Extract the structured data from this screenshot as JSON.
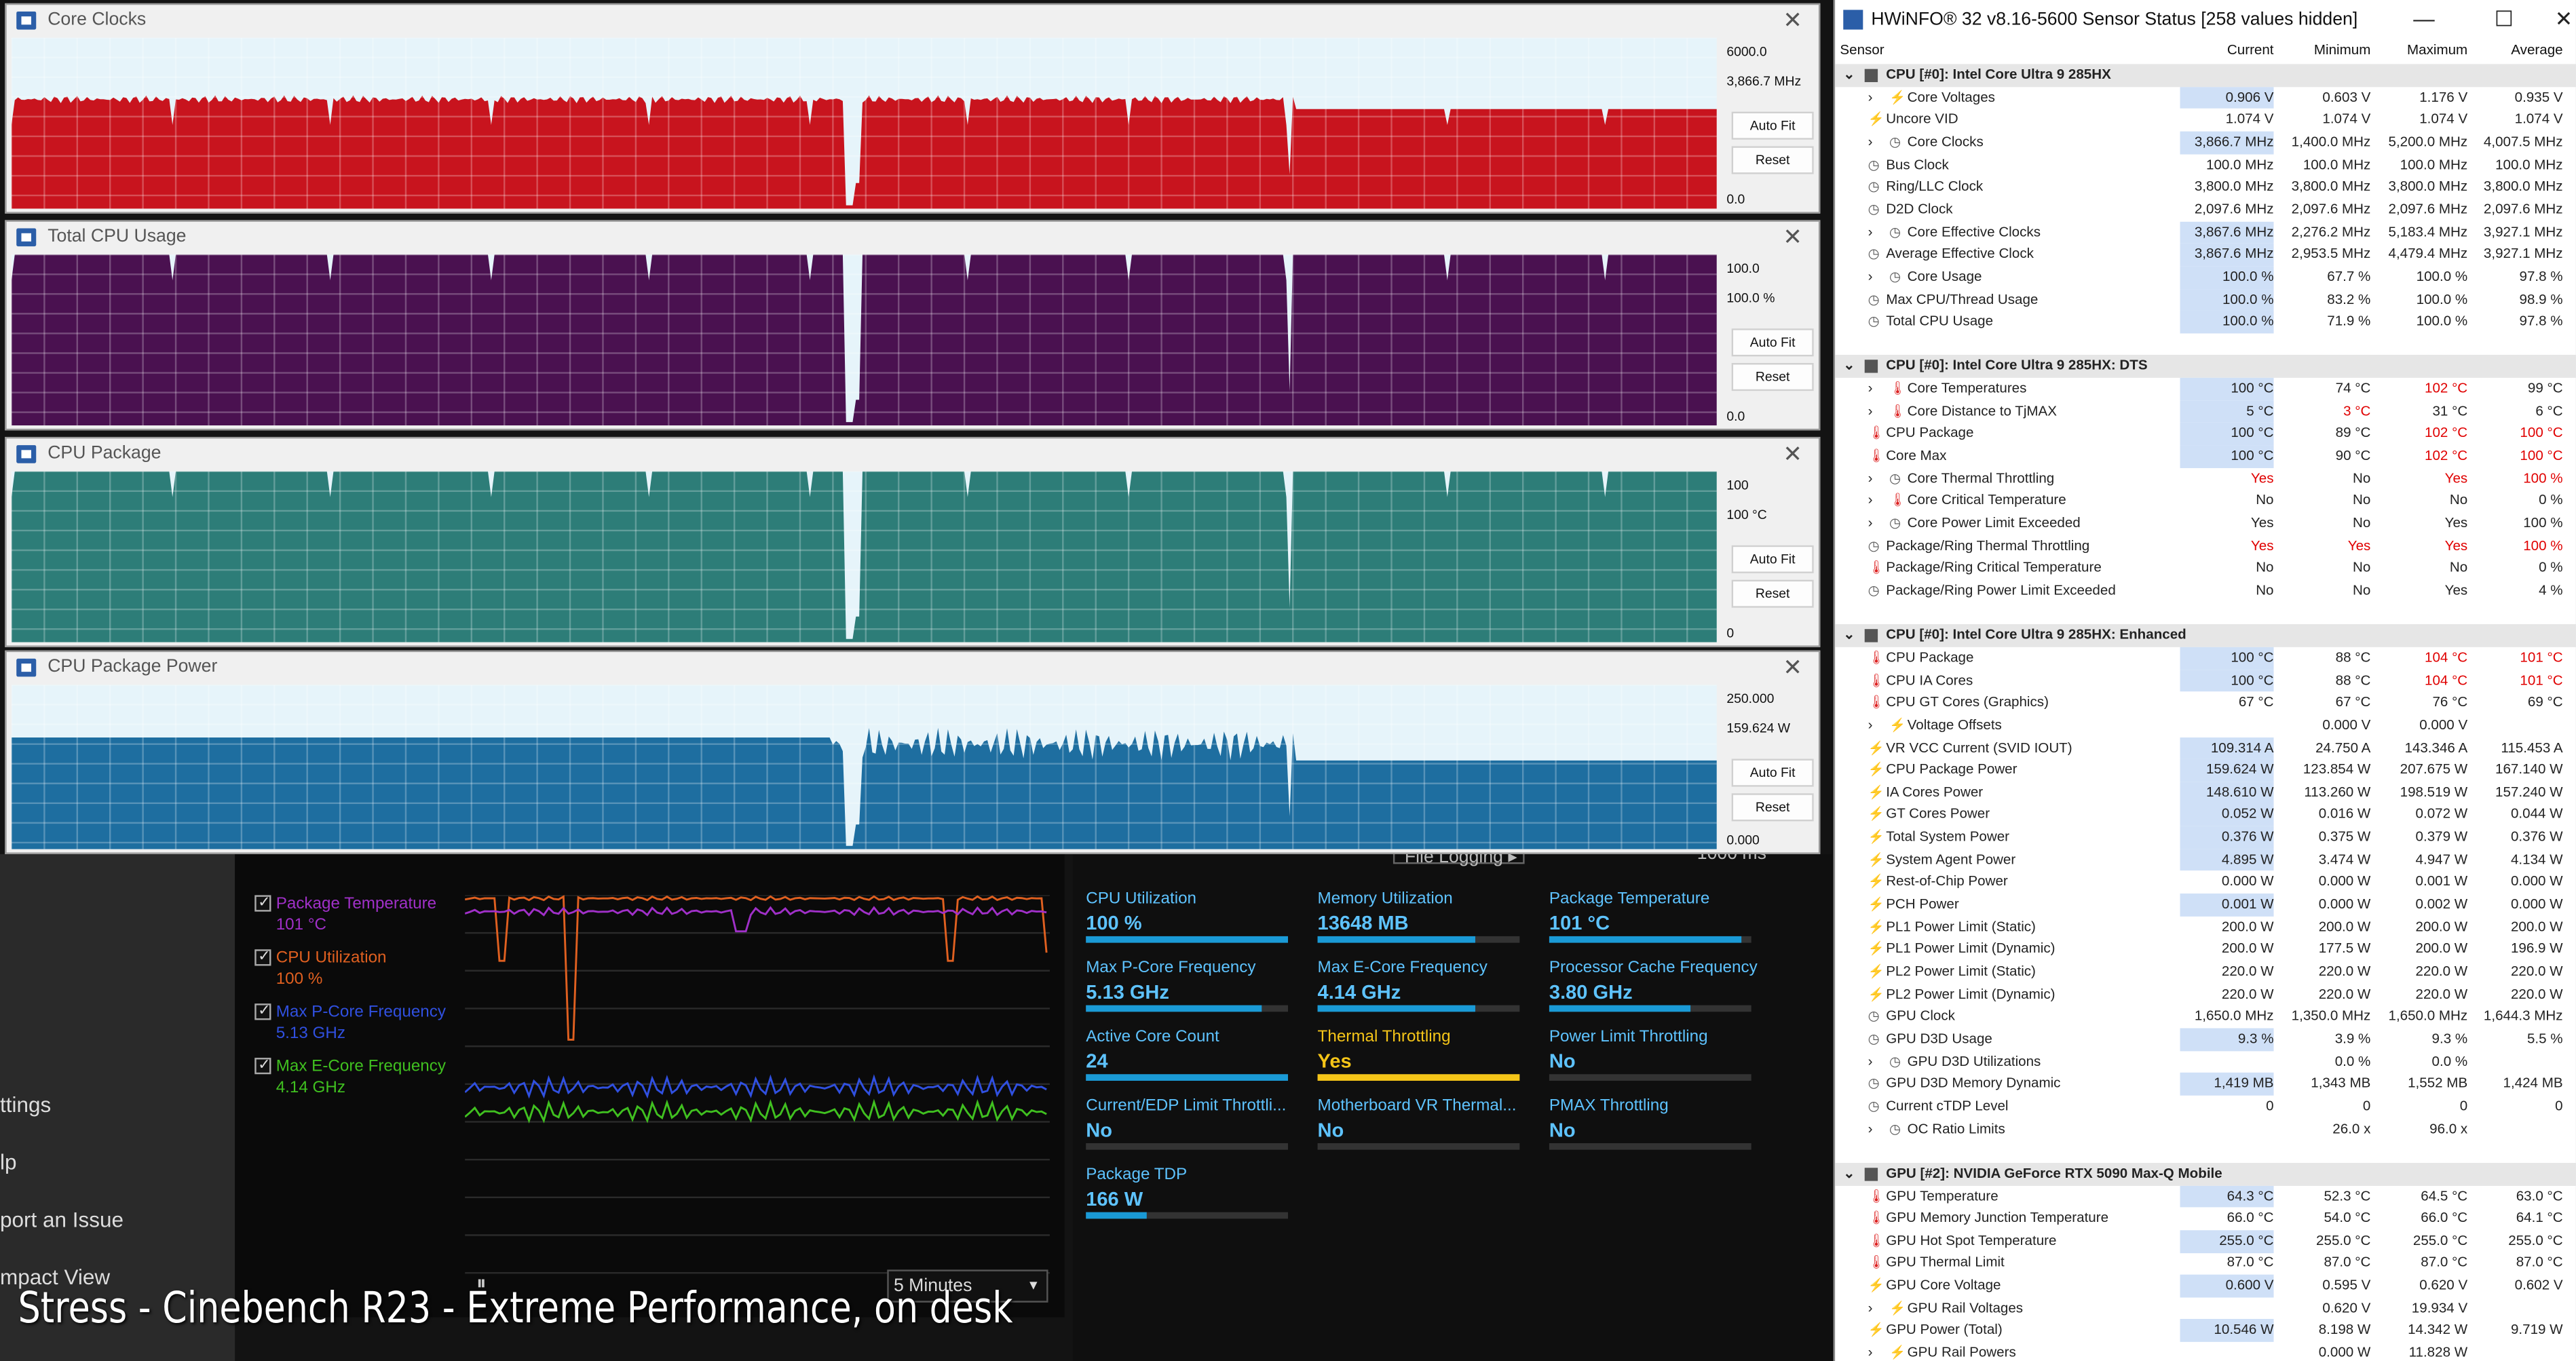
{
  "xtu": {
    "sidebar": [
      "ttings",
      "lp",
      "port an Issue",
      "mpact View"
    ],
    "legend": [
      {
        "label": "Package Temperature",
        "value": "101 °C",
        "color": "#a030c8"
      },
      {
        "label": "CPU Utilization",
        "value": "100 %",
        "color": "#e06020"
      },
      {
        "label": "Max P-Core Frequency",
        "value": "5.13 GHz",
        "color": "#3050e0"
      },
      {
        "label": "Max E-Core Frequency",
        "value": "4.14 GHz",
        "color": "#40c020"
      }
    ],
    "duration": "5 Minutes",
    "logging": "File Logging ▸",
    "interval": "1000 ms",
    "metrics": [
      {
        "label": "CPU Utilization",
        "value": "100 %",
        "fill": 1.0
      },
      {
        "label": "Memory Utilization",
        "value": "13648 MB",
        "fill": 0.78
      },
      {
        "label": "Package Temperature",
        "value": "101 °C",
        "fill": 0.95
      },
      {
        "label": "Max P-Core Frequency",
        "value": "5.13 GHz",
        "fill": 0.87
      },
      {
        "label": "Max E-Core Frequency",
        "value": "4.14 GHz",
        "fill": 0.78
      },
      {
        "label": "Processor Cache Frequency",
        "value": "3.80 GHz",
        "fill": 0.7
      },
      {
        "label": "Active Core Count",
        "value": "24",
        "fill": 1.0
      },
      {
        "label": "Thermal Throttling",
        "value": "Yes",
        "fill": 1.0,
        "warn": true
      },
      {
        "label": "Power Limit Throttling",
        "value": "No",
        "fill": 0
      },
      {
        "label": "Current/EDP Limit Throttli...",
        "value": "No",
        "fill": 0
      },
      {
        "label": "Motherboard VR Thermal...",
        "value": "No",
        "fill": 0
      },
      {
        "label": "PMAX Throttling",
        "value": "No",
        "fill": 0
      },
      {
        "label": "Package TDP",
        "value": "166 W",
        "fill": 0.3
      }
    ]
  },
  "graphs": [
    {
      "title": "Core Clocks",
      "max": "6000.0",
      "current": "3,866.7 MHz",
      "min": "0.0",
      "color": "#c8141e",
      "dip_color": "#ffffff",
      "level": 0.64,
      "auto": "Auto Fit",
      "reset": "Reset"
    },
    {
      "title": "Total CPU Usage",
      "max": "100.0",
      "current": "100.0 %",
      "min": "0.0",
      "color": "#4a1150",
      "level": 1.0,
      "auto": "Auto Fit",
      "reset": "Reset"
    },
    {
      "title": "CPU Package",
      "max": "100",
      "current": "100 °C",
      "min": "0",
      "color": "#2d7d78",
      "level": 1.0,
      "auto": "Auto Fit",
      "reset": "Reset"
    },
    {
      "title": "CPU Package Power",
      "max": "250.000",
      "current": "159.624 W",
      "min": "0.000",
      "color": "#1e6ea0",
      "level": 0.64,
      "auto": "Auto Fit",
      "reset": "Reset"
    }
  ],
  "hwinfo": {
    "title": "HWiNFO® 32 v8.16-5600 Sensor Status [258 values hidden]",
    "headers": [
      "Sensor",
      "Current",
      "Minimum",
      "Maximum",
      "Average"
    ],
    "rows": [
      {
        "g": 1,
        "n": "CPU [#0]: Intel Core Ultra 9 285HX"
      },
      {
        "n": "Core Voltages",
        "v": [
          "0.906 V",
          "0.603 V",
          "1.176 V",
          "0.935 V"
        ],
        "e": 1,
        "hl": 1
      },
      {
        "n": "Uncore VID",
        "v": [
          "1.074 V",
          "1.074 V",
          "1.074 V",
          "1.074 V"
        ]
      },
      {
        "n": "Core Clocks",
        "v": [
          "3,866.7 MHz",
          "1,400.0 MHz",
          "5,200.0 MHz",
          "4,007.5 MHz"
        ],
        "e": 1,
        "hl": 1
      },
      {
        "n": "Bus Clock",
        "v": [
          "100.0 MHz",
          "100.0 MHz",
          "100.0 MHz",
          "100.0 MHz"
        ]
      },
      {
        "n": "Ring/LLC Clock",
        "v": [
          "3,800.0 MHz",
          "3,800.0 MHz",
          "3,800.0 MHz",
          "3,800.0 MHz"
        ]
      },
      {
        "n": "D2D Clock",
        "v": [
          "2,097.6 MHz",
          "2,097.6 MHz",
          "2,097.6 MHz",
          "2,097.6 MHz"
        ]
      },
      {
        "n": "Core Effective Clocks",
        "v": [
          "3,867.6 MHz",
          "2,276.2 MHz",
          "5,183.4 MHz",
          "3,927.1 MHz"
        ],
        "e": 1,
        "hl": 1
      },
      {
        "n": "Average Effective Clock",
        "v": [
          "3,867.6 MHz",
          "2,953.5 MHz",
          "4,479.4 MHz",
          "3,927.1 MHz"
        ],
        "hl": 1
      },
      {
        "n": "Core Usage",
        "v": [
          "100.0 %",
          "67.7 %",
          "100.0 %",
          "97.8 %"
        ],
        "e": 1,
        "hl": 1
      },
      {
        "n": "Max CPU/Thread Usage",
        "v": [
          "100.0 %",
          "83.2 %",
          "100.0 %",
          "98.9 %"
        ],
        "hl": 1
      },
      {
        "n": "Total CPU Usage",
        "v": [
          "100.0 %",
          "71.9 %",
          "100.0 %",
          "97.8 %"
        ],
        "hl": 1
      },
      {
        "n": ""
      },
      {
        "g": 1,
        "n": "CPU [#0]: Intel Core Ultra 9 285HX: DTS"
      },
      {
        "n": "Core Temperatures",
        "v": [
          "100 °C",
          "74 °C",
          "102 °C",
          "99 °C"
        ],
        "e": 1,
        "hl": 1,
        "r": [
          2
        ]
      },
      {
        "n": "Core Distance to TjMAX",
        "v": [
          "5 °C",
          "3 °C",
          "31 °C",
          "6 °C"
        ],
        "e": 1,
        "hl": 1,
        "r": [
          1
        ]
      },
      {
        "n": "CPU Package",
        "v": [
          "100 °C",
          "89 °C",
          "102 °C",
          "100 °C"
        ],
        "hl": 1,
        "r": [
          2,
          3
        ]
      },
      {
        "n": "Core Max",
        "v": [
          "100 °C",
          "90 °C",
          "102 °C",
          "100 °C"
        ],
        "hl": 1,
        "r": [
          2,
          3
        ]
      },
      {
        "n": "Core Thermal Throttling",
        "v": [
          "Yes",
          "No",
          "Yes",
          "100 %"
        ],
        "e": 1,
        "r": [
          0,
          2,
          3
        ]
      },
      {
        "n": "Core Critical Temperature",
        "v": [
          "No",
          "No",
          "No",
          "0 %"
        ],
        "e": 1
      },
      {
        "n": "Core Power Limit Exceeded",
        "v": [
          "Yes",
          "No",
          "Yes",
          "100 %"
        ],
        "e": 1
      },
      {
        "n": "Package/Ring Thermal Throttling",
        "v": [
          "Yes",
          "Yes",
          "Yes",
          "100 %"
        ],
        "r": [
          0,
          1,
          2,
          3
        ]
      },
      {
        "n": "Package/Ring Critical Temperature",
        "v": [
          "No",
          "No",
          "No",
          "0 %"
        ]
      },
      {
        "n": "Package/Ring Power Limit Exceeded",
        "v": [
          "No",
          "No",
          "Yes",
          "4 %"
        ]
      },
      {
        "n": ""
      },
      {
        "g": 1,
        "n": "CPU [#0]: Intel Core Ultra 9 285HX: Enhanced"
      },
      {
        "n": "CPU Package",
        "v": [
          "100 °C",
          "88 °C",
          "104 °C",
          "101 °C"
        ],
        "hl": 1,
        "r": [
          2,
          3
        ]
      },
      {
        "n": "CPU IA Cores",
        "v": [
          "100 °C",
          "88 °C",
          "104 °C",
          "101 °C"
        ],
        "hl": 1,
        "r": [
          2,
          3
        ]
      },
      {
        "n": "CPU GT Cores (Graphics)",
        "v": [
          "67 °C",
          "67 °C",
          "76 °C",
          "69 °C"
        ]
      },
      {
        "n": "Voltage Offsets",
        "v": [
          "",
          "0.000 V",
          "0.000 V",
          ""
        ],
        "e": 1
      },
      {
        "n": "VR VCC Current (SVID IOUT)",
        "v": [
          "109.314 A",
          "24.750 A",
          "143.346 A",
          "115.453 A"
        ],
        "hl": 1
      },
      {
        "n": "CPU Package Power",
        "v": [
          "159.624 W",
          "123.854 W",
          "207.675 W",
          "167.140 W"
        ],
        "hl": 1
      },
      {
        "n": "IA Cores Power",
        "v": [
          "148.610 W",
          "113.260 W",
          "198.519 W",
          "157.240 W"
        ],
        "hl": 1
      },
      {
        "n": "GT Cores Power",
        "v": [
          "0.052 W",
          "0.016 W",
          "0.072 W",
          "0.044 W"
        ],
        "hl": 1
      },
      {
        "n": "Total System Power",
        "v": [
          "0.376 W",
          "0.375 W",
          "0.379 W",
          "0.376 W"
        ],
        "hl": 1
      },
      {
        "n": "System Agent Power",
        "v": [
          "4.895 W",
          "3.474 W",
          "4.947 W",
          "4.134 W"
        ],
        "hl": 1
      },
      {
        "n": "Rest-of-Chip Power",
        "v": [
          "0.000 W",
          "0.000 W",
          "0.001 W",
          "0.000 W"
        ]
      },
      {
        "n": "PCH Power",
        "v": [
          "0.001 W",
          "0.000 W",
          "0.002 W",
          "0.000 W"
        ],
        "hl": 1
      },
      {
        "n": "PL1 Power Limit (Static)",
        "v": [
          "200.0 W",
          "200.0 W",
          "200.0 W",
          "200.0 W"
        ]
      },
      {
        "n": "PL1 Power Limit (Dynamic)",
        "v": [
          "200.0 W",
          "177.5 W",
          "200.0 W",
          "196.9 W"
        ]
      },
      {
        "n": "PL2 Power Limit (Static)",
        "v": [
          "220.0 W",
          "220.0 W",
          "220.0 W",
          "220.0 W"
        ]
      },
      {
        "n": "PL2 Power Limit (Dynamic)",
        "v": [
          "220.0 W",
          "220.0 W",
          "220.0 W",
          "220.0 W"
        ]
      },
      {
        "n": "GPU Clock",
        "v": [
          "1,650.0 MHz",
          "1,350.0 MHz",
          "1,650.0 MHz",
          "1,644.3 MHz"
        ]
      },
      {
        "n": "GPU D3D Usage",
        "v": [
          "9.3 %",
          "3.9 %",
          "9.3 %",
          "5.5 %"
        ],
        "hl": 1
      },
      {
        "n": "GPU D3D Utilizations",
        "v": [
          "",
          "0.0 %",
          "0.0 %",
          ""
        ],
        "e": 1
      },
      {
        "n": "GPU D3D Memory Dynamic",
        "v": [
          "1,419 MB",
          "1,343 MB",
          "1,552 MB",
          "1,424 MB"
        ],
        "hl": 1
      },
      {
        "n": "Current cTDP Level",
        "v": [
          "0",
          "0",
          "0",
          "0"
        ]
      },
      {
        "n": "OC Ratio Limits",
        "v": [
          "",
          "26.0 x",
          "96.0 x",
          ""
        ],
        "e": 1
      },
      {
        "n": ""
      },
      {
        "g": 1,
        "n": "GPU [#2]: NVIDIA  GeForce RTX 5090 Max-Q Mobile"
      },
      {
        "n": "GPU Temperature",
        "v": [
          "64.3 °C",
          "52.3 °C",
          "64.5 °C",
          "63.0 °C"
        ],
        "hl": 1
      },
      {
        "n": "GPU Memory Junction Temperature",
        "v": [
          "66.0 °C",
          "54.0 °C",
          "66.0 °C",
          "64.1 °C"
        ]
      },
      {
        "n": "GPU Hot Spot Temperature",
        "v": [
          "255.0 °C",
          "255.0 °C",
          "255.0 °C",
          "255.0 °C"
        ],
        "hl": 1
      },
      {
        "n": "GPU Thermal Limit",
        "v": [
          "87.0 °C",
          "87.0 °C",
          "87.0 °C",
          "87.0 °C"
        ]
      },
      {
        "n": "GPU Core Voltage",
        "v": [
          "0.600 V",
          "0.595 V",
          "0.620 V",
          "0.602 V"
        ],
        "hl": 1
      },
      {
        "n": "GPU Rail Voltages",
        "v": [
          "",
          "0.620 V",
          "19.934 V",
          ""
        ],
        "e": 1
      },
      {
        "n": "GPU Power (Total)",
        "v": [
          "10.546 W",
          "8.198 W",
          "14.342 W",
          "9.719 W"
        ],
        "hl": 1
      },
      {
        "n": "GPU Rail Powers",
        "v": [
          "",
          "0.000 W",
          "11.828 W",
          ""
        ],
        "e": 1
      }
    ]
  },
  "caption": "Stress - Cinebench R23 - Extreme Performance, on desk"
}
